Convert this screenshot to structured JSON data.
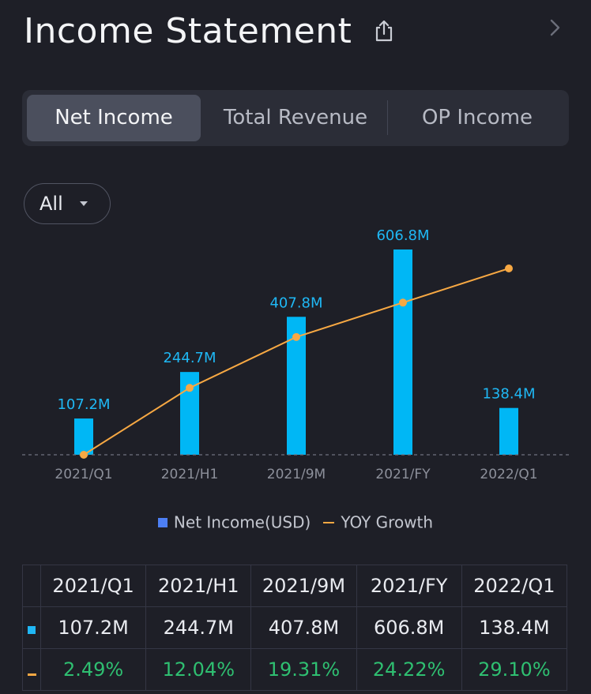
{
  "header": {
    "title": "Income Statement",
    "share_icon": "share-icon",
    "next_icon": "chevron-right-icon"
  },
  "tabs": [
    {
      "label": "Net Income",
      "active": true
    },
    {
      "label": "Total Revenue",
      "active": false
    },
    {
      "label": "OP Income",
      "active": false
    }
  ],
  "filter": {
    "label": "All",
    "icon": "caret-down-icon"
  },
  "colors": {
    "bar": "#00b7f5",
    "line": "#f7a843",
    "positive": "#2fbf71",
    "legend_square": "#4d7ff4"
  },
  "chart_data": {
    "type": "bar",
    "categories": [
      "2021/Q1",
      "2021/H1",
      "2021/9M",
      "2021/FY",
      "2022/Q1"
    ],
    "series": [
      {
        "name": "Net Income(USD)",
        "type": "bar",
        "values": [
          107.2,
          244.7,
          407.8,
          606.8,
          138.4
        ],
        "labels": [
          "107.2M",
          "244.7M",
          "407.8M",
          "606.8M",
          "138.4M"
        ]
      },
      {
        "name": "YOY Growth",
        "type": "line",
        "values": [
          2.49,
          12.04,
          19.31,
          24.22,
          29.1
        ]
      }
    ]
  },
  "legend": {
    "bar_label": "Net Income(USD)",
    "line_label": "YOY Growth"
  },
  "table": {
    "headers": [
      "2021/Q1",
      "2021/H1",
      "2021/9M",
      "2021/FY",
      "2022/Q1"
    ],
    "net_income": [
      "107.2M",
      "244.7M",
      "407.8M",
      "606.8M",
      "138.4M"
    ],
    "yoy_growth": [
      "2.49%",
      "12.04%",
      "19.31%",
      "24.22%",
      "29.10%"
    ]
  }
}
